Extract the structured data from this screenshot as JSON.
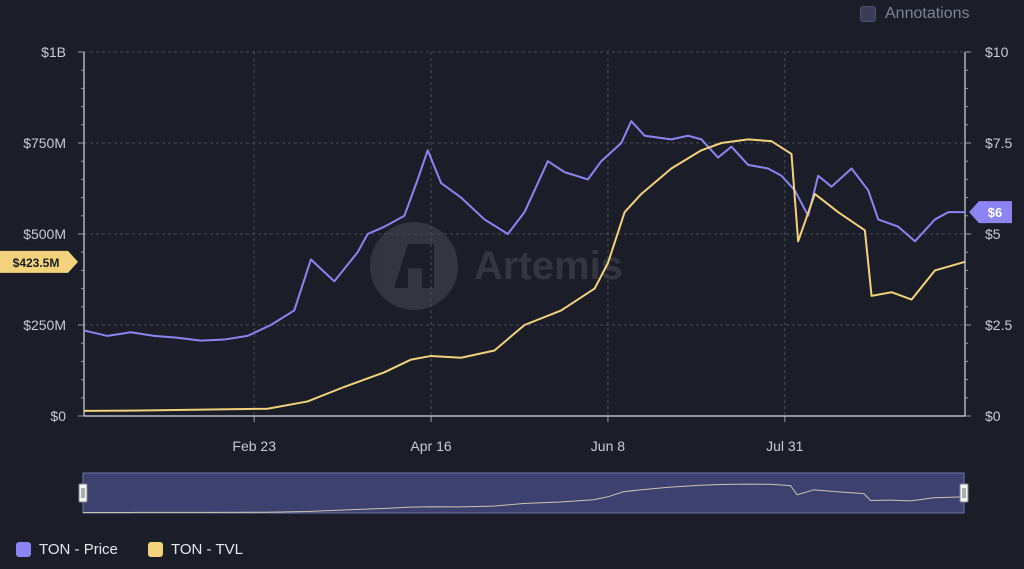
{
  "annotations": {
    "label": "Annotations",
    "checked": false
  },
  "watermark": "Artemis",
  "colors": {
    "price": "#8c84f2",
    "tvl": "#f2d27a",
    "grid": "#4a4c5c",
    "navigator_bg": "#3d4170"
  },
  "legend": [
    {
      "label": "TON - Price",
      "color": "#8c84f2"
    },
    {
      "label": "TON - TVL",
      "color": "#f2d27a"
    }
  ],
  "chart_data": {
    "type": "line",
    "x_domain": [
      "2024-01-03",
      "2024-09-23"
    ],
    "x_ticks": [
      {
        "date": "2024-02-23",
        "label": "Feb 23"
      },
      {
        "date": "2024-04-16",
        "label": "Apr 16"
      },
      {
        "date": "2024-06-08",
        "label": "Jun 8"
      },
      {
        "date": "2024-07-31",
        "label": "Jul 31"
      }
    ],
    "y_left": {
      "min": 0,
      "max": 1000000000,
      "ticks": [
        "$0",
        "$250M",
        "$500M",
        "$750M",
        "$1B"
      ]
    },
    "y_right": {
      "min": 0,
      "max": 10,
      "ticks": [
        "$0",
        "$2.5",
        "$5",
        "$7.5",
        "$10"
      ]
    },
    "series": [
      {
        "name": "TON - Price",
        "axis": "right",
        "current_label": "$6",
        "points": [
          [
            "2024-01-03",
            2.35
          ],
          [
            "2024-01-10",
            2.2
          ],
          [
            "2024-01-17",
            2.3
          ],
          [
            "2024-01-24",
            2.2
          ],
          [
            "2024-01-31",
            2.15
          ],
          [
            "2024-02-07",
            2.07
          ],
          [
            "2024-02-14",
            2.1
          ],
          [
            "2024-02-21",
            2.2
          ],
          [
            "2024-02-28",
            2.5
          ],
          [
            "2024-03-06",
            2.9
          ],
          [
            "2024-03-11",
            4.3
          ],
          [
            "2024-03-18",
            3.7
          ],
          [
            "2024-03-25",
            4.5
          ],
          [
            "2024-03-28",
            5.0
          ],
          [
            "2024-04-02",
            5.2
          ],
          [
            "2024-04-08",
            5.5
          ],
          [
            "2024-04-12",
            6.5
          ],
          [
            "2024-04-15",
            7.3
          ],
          [
            "2024-04-19",
            6.4
          ],
          [
            "2024-04-25",
            6.0
          ],
          [
            "2024-05-02",
            5.4
          ],
          [
            "2024-05-09",
            5.0
          ],
          [
            "2024-05-14",
            5.6
          ],
          [
            "2024-05-21",
            7.0
          ],
          [
            "2024-05-26",
            6.7
          ],
          [
            "2024-06-02",
            6.5
          ],
          [
            "2024-06-06",
            7.0
          ],
          [
            "2024-06-12",
            7.5
          ],
          [
            "2024-06-15",
            8.1
          ],
          [
            "2024-06-19",
            7.7
          ],
          [
            "2024-06-27",
            7.6
          ],
          [
            "2024-07-02",
            7.7
          ],
          [
            "2024-07-06",
            7.6
          ],
          [
            "2024-07-11",
            7.1
          ],
          [
            "2024-07-15",
            7.4
          ],
          [
            "2024-07-20",
            6.9
          ],
          [
            "2024-07-26",
            6.8
          ],
          [
            "2024-07-30",
            6.6
          ],
          [
            "2024-08-03",
            6.2
          ],
          [
            "2024-08-07",
            5.5
          ],
          [
            "2024-08-10",
            6.6
          ],
          [
            "2024-08-14",
            6.3
          ],
          [
            "2024-08-20",
            6.8
          ],
          [
            "2024-08-25",
            6.2
          ],
          [
            "2024-08-28",
            5.4
          ],
          [
            "2024-09-03",
            5.2
          ],
          [
            "2024-09-08",
            4.8
          ],
          [
            "2024-09-14",
            5.4
          ],
          [
            "2024-09-18",
            5.6
          ],
          [
            "2024-09-23",
            5.6
          ]
        ]
      },
      {
        "name": "TON - TVL",
        "axis": "left",
        "current_label": "$423.5M",
        "points": [
          [
            "2024-01-03",
            14000000
          ],
          [
            "2024-01-20",
            15000000
          ],
          [
            "2024-02-10",
            18000000
          ],
          [
            "2024-02-27",
            20000000
          ],
          [
            "2024-03-10",
            40000000
          ],
          [
            "2024-03-21",
            80000000
          ],
          [
            "2024-04-02",
            120000000
          ],
          [
            "2024-04-10",
            155000000
          ],
          [
            "2024-04-16",
            165000000
          ],
          [
            "2024-04-25",
            160000000
          ],
          [
            "2024-05-05",
            180000000
          ],
          [
            "2024-05-14",
            250000000
          ],
          [
            "2024-05-25",
            290000000
          ],
          [
            "2024-06-04",
            350000000
          ],
          [
            "2024-06-08",
            420000000
          ],
          [
            "2024-06-13",
            560000000
          ],
          [
            "2024-06-18",
            610000000
          ],
          [
            "2024-06-27",
            680000000
          ],
          [
            "2024-07-06",
            730000000
          ],
          [
            "2024-07-12",
            750000000
          ],
          [
            "2024-07-20",
            760000000
          ],
          [
            "2024-07-27",
            755000000
          ],
          [
            "2024-08-02",
            720000000
          ],
          [
            "2024-08-04",
            480000000
          ],
          [
            "2024-08-09",
            610000000
          ],
          [
            "2024-08-16",
            560000000
          ],
          [
            "2024-08-24",
            510000000
          ],
          [
            "2024-08-26",
            330000000
          ],
          [
            "2024-09-01",
            340000000
          ],
          [
            "2024-09-07",
            320000000
          ],
          [
            "2024-09-14",
            400000000
          ],
          [
            "2024-09-23",
            423500000
          ]
        ]
      }
    ]
  }
}
